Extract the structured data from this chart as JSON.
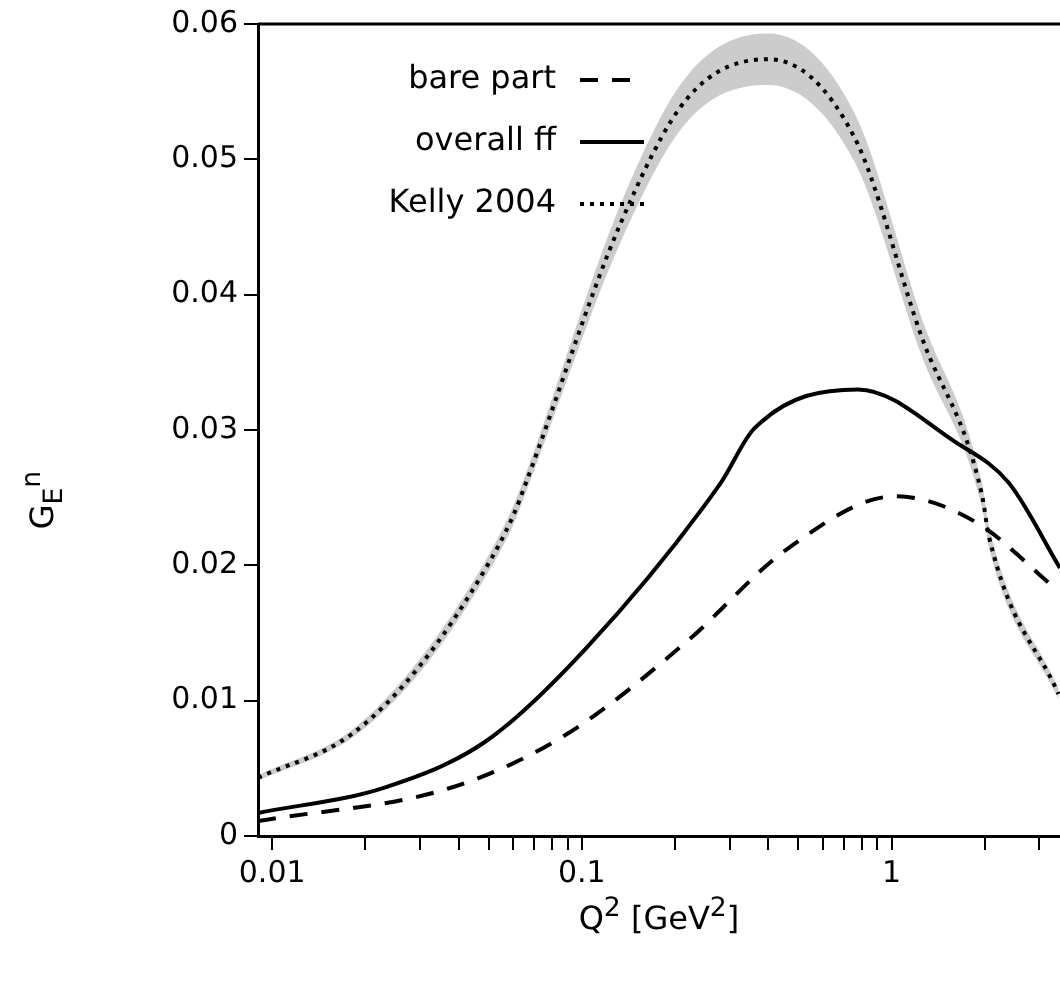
{
  "chart_data": {
    "type": "line",
    "xlabel": "Q$^{2}$ [GeV$^{2}$]",
    "ylabel": "G$_{E}$$^{n}$",
    "log": "x",
    "xlim": [
      0.009,
      3.5
    ],
    "ylim": [
      0,
      0.06
    ],
    "xticks": [
      0.01,
      {
        "value": 0.02,
        "label": null
      },
      {
        "value": 0.03,
        "label": null
      },
      {
        "value": 0.04,
        "label": null
      },
      {
        "value": 0.05,
        "label": null
      },
      {
        "value": 0.06,
        "label": null
      },
      {
        "value": 0.07,
        "label": null
      },
      {
        "value": 0.08,
        "label": null
      },
      {
        "value": 0.09,
        "label": null
      },
      0.1,
      {
        "value": 0.2,
        "label": null
      },
      {
        "value": 0.3,
        "label": null
      },
      {
        "value": 0.4,
        "label": null
      },
      {
        "value": 0.5,
        "label": null
      },
      {
        "value": 0.6,
        "label": null
      },
      {
        "value": 0.7,
        "label": null
      },
      {
        "value": 0.8,
        "label": null
      },
      {
        "value": 0.9,
        "label": null
      },
      1,
      {
        "value": 2,
        "label": null
      },
      {
        "value": 3,
        "label": null
      }
    ],
    "yticks": [
      0,
      0.01,
      0.02,
      0.03,
      0.04,
      0.05,
      0.06
    ],
    "grid": false,
    "legend": "top left",
    "marker": "none",
    "series": [
      {
        "name": "bare part",
        "color": "#000000",
        "line_style": "dashed",
        "x": [
          0.009,
          0.0382,
          0.089,
          0.219,
          0.46,
          1.03,
          1.87,
          3.3
        ],
        "values": [
          0.0011,
          0.0036,
          0.0075,
          0.0144,
          0.0212,
          0.0251,
          0.0232,
          0.0185
        ]
      },
      {
        "name": "overall ff",
        "color": "#000000",
        "line_style": "solid",
        "x": [
          0.009,
          0.0232,
          0.049,
          0.1035,
          0.281,
          0.36,
          0.78,
          1.61,
          2.39,
          3.5
        ],
        "values": [
          0.0017,
          0.0036,
          0.007,
          0.0139,
          0.0261,
          0.0301,
          0.033,
          0.0291,
          0.0261,
          0.0198
        ]
      },
      {
        "name": "Kelly 2004",
        "color": "#000000",
        "line_style": "dotted",
        "x": [
          0.009,
          0.018,
          0.0298,
          0.049,
          0.0601,
          0.066,
          0.133,
          0.219,
          0.4,
          0.76,
          1.25,
          1.96,
          2.06,
          3.46
        ],
        "values": [
          0.0043,
          0.0075,
          0.0125,
          0.0198,
          0.0237,
          0.0261,
          0.0452,
          0.0545,
          0.0574,
          0.0516,
          0.0369,
          0.0252,
          0.0222,
          0.0105
        ],
        "lower": [
          0.0041,
          0.0072,
          0.012,
          0.0192,
          0.023,
          0.0254,
          0.0438,
          0.0528,
          0.0555,
          0.0498,
          0.0355,
          0.0243,
          0.0214,
          0.0101
        ],
        "upper": [
          0.0045,
          0.0078,
          0.013,
          0.0204,
          0.0244,
          0.0268,
          0.0466,
          0.0562,
          0.0593,
          0.0534,
          0.0383,
          0.0261,
          0.023,
          0.0109
        ]
      }
    ]
  }
}
